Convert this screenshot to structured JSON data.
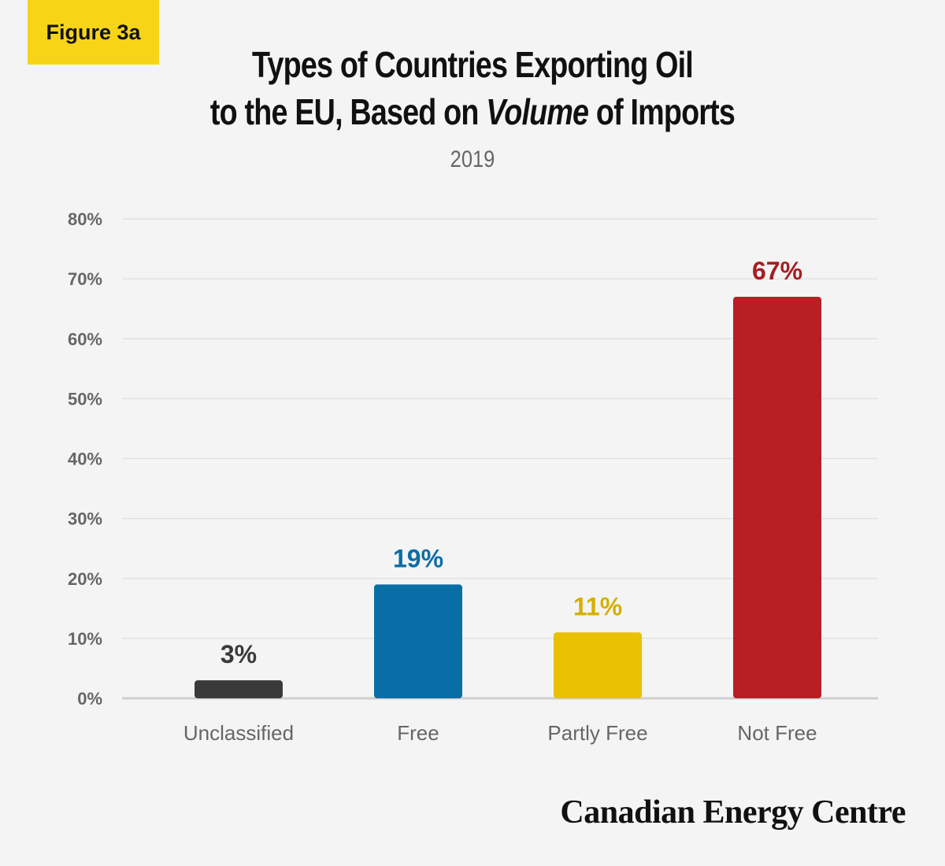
{
  "figure_label": "Figure 3a",
  "title_line1": "Types of Countries Exporting Oil",
  "title_line2_prefix": "to the EU, Based on ",
  "title_line2_emph": "Volume",
  "title_line2_suffix": " of Imports",
  "subtitle": "2019",
  "brand": "Canadian Energy Centre",
  "chart_data": {
    "type": "bar",
    "title": "Types of Countries Exporting Oil to the EU, Based on Volume of Imports",
    "subtitle": "2019",
    "categories": [
      "Unclassified",
      "Free",
      "Partly Free",
      "Not Free"
    ],
    "values": [
      3,
      19,
      11,
      67
    ],
    "value_labels": [
      "3%",
      "19%",
      "11%",
      "67%"
    ],
    "colors": [
      "#3a3a3a",
      "#0a6ea6",
      "#e8c200",
      "#b81e24"
    ],
    "label_colors": [
      "#3a3a3a",
      "#0a6ea6",
      "#d4b000",
      "#a51d22"
    ],
    "ylim": [
      0,
      80
    ],
    "yticks": [
      0,
      10,
      20,
      30,
      40,
      50,
      60,
      70,
      80
    ],
    "ytick_labels": [
      "0%",
      "10%",
      "20%",
      "30%",
      "40%",
      "50%",
      "60%",
      "70%",
      "80%"
    ],
    "xlabel": "",
    "ylabel": "",
    "grid": true,
    "legend": "none"
  }
}
